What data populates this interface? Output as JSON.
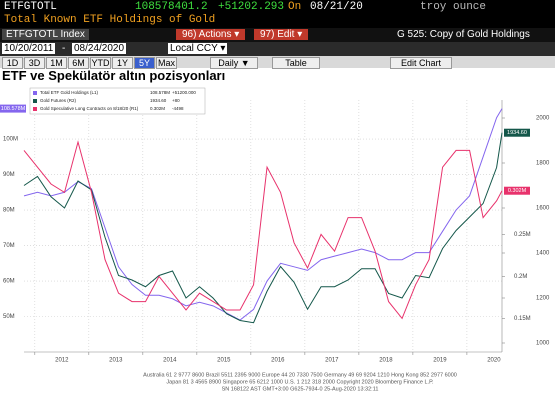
{
  "header": {
    "ticker": "ETFGTOTL",
    "value": "108578401.2",
    "change": "+51202.293",
    "on": "On",
    "date": "08/21/20",
    "unit": "troy ounce",
    "description": "Total Known ETF Holdings of Gold"
  },
  "toolbar": {
    "security": "ETFGTOTL Index",
    "actions": "96) Actions ▾",
    "edit": "97) Edit ▾",
    "chart_name": "G 525: Copy of Gold Holdings",
    "start_date": "10/20/2011",
    "separator": "-",
    "end_date": "08/24/2020",
    "currency": "Local CCY ▾",
    "periods": [
      "1D",
      "3D",
      "1M",
      "6M",
      "YTD",
      "1Y",
      "5Y",
      "Max"
    ],
    "active_period_index": 6,
    "frequency": "Daily ▼",
    "table": "Table",
    "edit_chart": "Edit Chart"
  },
  "chart_data": {
    "type": "line",
    "title": "ETF ve Spekülatör altın pozisyonları",
    "x": [
      2011.8,
      2012.05,
      2012.3,
      2012.55,
      2012.8,
      2013.05,
      2013.3,
      2013.55,
      2013.8,
      2014.05,
      2014.3,
      2014.55,
      2014.8,
      2015.05,
      2015.3,
      2015.55,
      2015.8,
      2016.05,
      2016.3,
      2016.55,
      2016.8,
      2017.05,
      2017.3,
      2017.55,
      2017.8,
      2018.05,
      2018.3,
      2018.55,
      2018.8,
      2019.05,
      2019.3,
      2019.55,
      2019.8,
      2020.05,
      2020.3,
      2020.55,
      2020.65
    ],
    "series": [
      {
        "name": "Total ETF Gold Holdings (L1)",
        "last_label": "108.578M",
        "change": "+51200.000",
        "color": "#8466ee",
        "axis": "y",
        "values": [
          84,
          85,
          84,
          85,
          88,
          86,
          75,
          64,
          59,
          56,
          56,
          55,
          53,
          54,
          53,
          51,
          49,
          52,
          60,
          65,
          64,
          63,
          66,
          67,
          68,
          69,
          68,
          66,
          66,
          68,
          68,
          74,
          80,
          84,
          95,
          106,
          108.578
        ]
      },
      {
        "name": "Gold Futures (R2)",
        "last_label": "1934.60",
        "change": "+80",
        "color": "#14574a",
        "axis": "y2",
        "values": [
          1700,
          1740,
          1650,
          1600,
          1720,
          1680,
          1470,
          1300,
          1280,
          1250,
          1300,
          1320,
          1200,
          1250,
          1200,
          1130,
          1100,
          1090,
          1230,
          1340,
          1270,
          1150,
          1250,
          1250,
          1280,
          1330,
          1330,
          1220,
          1200,
          1300,
          1290,
          1420,
          1500,
          1560,
          1620,
          1780,
          1934.6
        ]
      },
      {
        "name": "Gold Speculative Long Contracts on 8/18/20 (R1)",
        "last_label": "0.302M",
        "change": "-4498",
        "color": "#e8326c",
        "axis": "y3",
        "values": [
          0.35,
          0.33,
          0.31,
          0.3,
          0.36,
          0.3,
          0.22,
          0.18,
          0.17,
          0.17,
          0.2,
          0.18,
          0.16,
          0.18,
          0.17,
          0.16,
          0.16,
          0.19,
          0.33,
          0.3,
          0.24,
          0.21,
          0.25,
          0.23,
          0.27,
          0.27,
          0.23,
          0.17,
          0.15,
          0.19,
          0.22,
          0.33,
          0.35,
          0.35,
          0.27,
          0.29,
          0.302
        ]
      }
    ],
    "xlim": [
      2011.8,
      2020.65
    ],
    "xticks": [
      2012,
      2013,
      2014,
      2015,
      2016,
      2017,
      2018,
      2019,
      2020
    ],
    "ylim": [
      40,
      111
    ],
    "yticks": [
      {
        "value": 50,
        "label": "50M"
      },
      {
        "value": 60,
        "label": "60M"
      },
      {
        "value": 70,
        "label": "70M"
      },
      {
        "value": 80,
        "label": "80M"
      },
      {
        "value": 90,
        "label": "90M"
      },
      {
        "value": 100,
        "label": "100M"
      }
    ],
    "y2lim": [
      960,
      2080
    ],
    "y2ticks": [
      1000,
      1200,
      1400,
      1600,
      1800,
      2000
    ],
    "y3lim": [
      0.11,
      0.41
    ],
    "y3ticks": [
      {
        "value": 0.15,
        "label": "0.15M"
      },
      {
        "value": 0.2,
        "label": "0.2M"
      },
      {
        "value": 0.25,
        "label": "0.25M"
      }
    ],
    "grid": true
  },
  "footer": [
    "Australia 61 2 9777 8600 Brazil 5511 2395 9000 Europe 44 20 7330 7500 Germany 49 69 9204 1210 Hong Kong 852 2977 6000",
    "Japan 81 3 4565 8900 Singapore 65 6212 1000 U.S. 1 212 318 2000 Copyright 2020 Bloomberg Finance L.P.",
    "SN 168122 AST GMT+3:00 G625-7934-0 25-Aug-2020 13:32:11"
  ]
}
